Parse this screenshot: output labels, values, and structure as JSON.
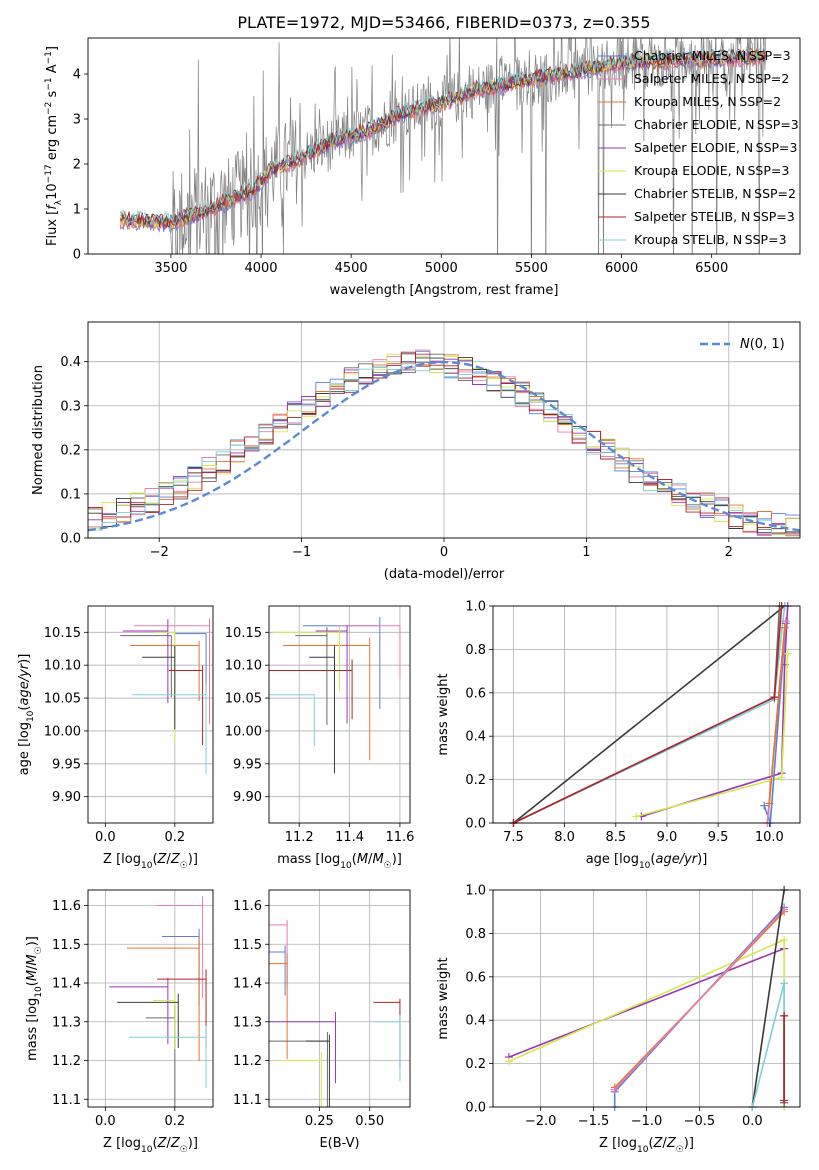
{
  "title": "PLATE=1972, MJD=53466, FIBERID=0373, z=0.355",
  "colors": {
    "chabrier_miles": "#5b7fd6",
    "salpeter_miles": "#e87db0",
    "kroupa_miles": "#e8742a",
    "chabrier_elodie": "#6b6b6b",
    "salpeter_elodie": "#9a36b5",
    "kroupa_elodie": "#d6e84a",
    "chabrier_stelib": "#3a3a3a",
    "salpeter_stelib": "#b0242a",
    "kroupa_stelib": "#7ecfd8",
    "data_gray": "#808080",
    "normal_curve": "#5b8ad6",
    "grid": "#b0b0b0"
  },
  "chart_data": [
    {
      "id": "spectrum",
      "type": "line",
      "xlabel": "wavelength [Angstrom, rest frame]",
      "ylabel": "Flux [f_λ 10^-17 erg cm^-2 s^-1 A^-1]",
      "xlim": [
        3040,
        6990
      ],
      "ylim": [
        0,
        4.8
      ],
      "xticks": [
        3500,
        4000,
        4500,
        5000,
        5500,
        6000,
        6500
      ],
      "yticks": [
        0,
        1,
        2,
        3,
        4
      ],
      "grid": false,
      "legend_position": "top-right",
      "legend": [
        {
          "label": "Chabrier MILES, N_SSP=3",
          "color_key": "chabrier_miles"
        },
        {
          "label": "Salpeter MILES, N_SSP=2",
          "color_key": "salpeter_miles"
        },
        {
          "label": "Kroupa MILES, N_SSP=2",
          "color_key": "kroupa_miles"
        },
        {
          "label": "Chabrier ELODIE, N_SSP=3",
          "color_key": "chabrier_elodie"
        },
        {
          "label": "Salpeter ELODIE, N_SSP=3",
          "color_key": "salpeter_elodie"
        },
        {
          "label": "Kroupa ELODIE, N_SSP=3",
          "color_key": "kroupa_elodie"
        },
        {
          "label": "Chabrier STELIB, N_SSP=2",
          "color_key": "chabrier_stelib"
        },
        {
          "label": "Salpeter STELIB, N_SSP=3",
          "color_key": "salpeter_stelib"
        },
        {
          "label": "Kroupa STELIB, N_SSP=3",
          "color_key": "kroupa_stelib"
        }
      ],
      "continuum": {
        "x": [
          3220,
          3500,
          3700,
          3800,
          3950,
          4050,
          4200,
          4400,
          4600,
          4800,
          5000,
          5200,
          5400,
          5600,
          5800,
          6000,
          6300,
          6600,
          6800
        ],
        "y": [
          0.75,
          0.7,
          0.95,
          1.15,
          1.4,
          1.85,
          2.1,
          2.5,
          2.75,
          3.15,
          3.35,
          3.65,
          3.8,
          3.95,
          4.1,
          4.25,
          4.3,
          4.35,
          4.4
        ]
      }
    },
    {
      "id": "residuals",
      "type": "bar",
      "xlabel": "(data-model)/error",
      "ylabel": "Normed distribution",
      "xlim": [
        -2.5,
        2.5
      ],
      "ylim": [
        0,
        0.49
      ],
      "xticks": [
        -2,
        -1,
        0,
        1,
        2
      ],
      "yticks": [
        0.0,
        0.1,
        0.2,
        0.3,
        0.4
      ],
      "grid": true,
      "legend_position": "top-right",
      "legend": [
        {
          "label": "N(0, 1)",
          "color_key": "normal_curve"
        }
      ],
      "bin_width": 0.1
    },
    {
      "id": "age_vs_Z",
      "type": "scatter",
      "xlabel": "Z [log10(Z/Z☉)]",
      "ylabel": "age [log10(age/yr)]",
      "xlim": [
        -0.05,
        0.31
      ],
      "ylim": [
        9.86,
        10.19
      ],
      "xticks": [
        0.0,
        0.2
      ],
      "yticks": [
        9.9,
        9.95,
        10.0,
        10.05,
        10.1,
        10.15
      ],
      "grid": true,
      "points": [
        {
          "x": 0.29,
          "y": 10.148,
          "color_key": "chabrier_miles"
        },
        {
          "x": 0.3,
          "y": 10.16,
          "color_key": "salpeter_miles"
        },
        {
          "x": 0.27,
          "y": 10.13,
          "color_key": "kroupa_miles"
        },
        {
          "x": 0.19,
          "y": 10.145,
          "color_key": "chabrier_elodie"
        },
        {
          "x": 0.18,
          "y": 10.152,
          "color_key": "salpeter_elodie"
        },
        {
          "x": 0.2,
          "y": 10.15,
          "color_key": "kroupa_elodie"
        },
        {
          "x": 0.2,
          "y": 10.112,
          "color_key": "chabrier_stelib"
        },
        {
          "x": 0.28,
          "y": 10.092,
          "color_key": "salpeter_stelib"
        },
        {
          "x": 0.29,
          "y": 10.055,
          "color_key": "kroupa_stelib"
        }
      ]
    },
    {
      "id": "age_vs_mass",
      "type": "scatter",
      "xlabel": "mass [log10(M/M☉)]",
      "ylabel": "",
      "xlim": [
        11.08,
        11.64
      ],
      "ylim": [
        9.86,
        10.19
      ],
      "xticks": [
        11.2,
        11.4,
        11.6
      ],
      "yticks": [
        9.9,
        9.95,
        10.0,
        10.05,
        10.1,
        10.15
      ],
      "grid": true,
      "points": [
        {
          "x": 11.52,
          "y": 10.16,
          "color_key": "chabrier_miles"
        },
        {
          "x": 11.6,
          "y": 10.16,
          "color_key": "salpeter_miles"
        },
        {
          "x": 11.48,
          "y": 10.13,
          "color_key": "kroupa_miles"
        },
        {
          "x": 11.31,
          "y": 10.145,
          "color_key": "chabrier_elodie"
        },
        {
          "x": 11.39,
          "y": 10.152,
          "color_key": "salpeter_elodie"
        },
        {
          "x": 11.36,
          "y": 10.15,
          "color_key": "kroupa_elodie"
        },
        {
          "x": 11.34,
          "y": 10.112,
          "color_key": "chabrier_stelib"
        },
        {
          "x": 11.41,
          "y": 10.092,
          "color_key": "salpeter_stelib"
        },
        {
          "x": 11.26,
          "y": 10.055,
          "color_key": "kroupa_stelib"
        }
      ]
    },
    {
      "id": "cum_mass_vs_age",
      "type": "line",
      "xlabel": "age [log10(age/yr)]",
      "ylabel": "mass weight",
      "xlim": [
        7.3,
        10.3
      ],
      "ylim": [
        0,
        1.0
      ],
      "xticks": [
        7.5,
        8.0,
        8.5,
        9.0,
        9.5,
        10.0
      ],
      "yticks": [
        0.0,
        0.2,
        0.4,
        0.6,
        0.8,
        1.0
      ],
      "grid": true,
      "series": [
        {
          "color_key": "chabrier_stelib",
          "x": [
            7.5,
            10.15
          ],
          "y": [
            0.0,
            1.0
          ]
        },
        {
          "color_key": "kroupa_stelib",
          "x": [
            7.5,
            10.05,
            10.15
          ],
          "y": [
            0.0,
            0.57,
            1.0
          ]
        },
        {
          "color_key": "chabrier_elodie",
          "x": [
            7.5,
            10.05,
            10.1
          ],
          "y": [
            0.0,
            0.58,
            1.0
          ]
        },
        {
          "color_key": "salpeter_stelib",
          "x": [
            7.5,
            10.05,
            10.12
          ],
          "y": [
            0.0,
            0.58,
            1.0
          ]
        },
        {
          "color_key": "salpeter_elodie",
          "x": [
            8.75,
            10.12,
            10.15,
            10.18
          ],
          "y": [
            0.03,
            0.23,
            0.73,
            1.0
          ]
        },
        {
          "color_key": "kroupa_elodie",
          "x": [
            8.7,
            10.12,
            10.18
          ],
          "y": [
            0.03,
            0.21,
            0.78
          ]
        },
        {
          "color_key": "chabrier_miles",
          "x": [
            9.95,
            10.01,
            10.16
          ],
          "y": [
            0.08,
            0.0,
            0.92
          ]
        },
        {
          "color_key": "salpeter_miles",
          "x": [
            9.98,
            10.16
          ],
          "y": [
            0.0,
            0.93
          ]
        },
        {
          "color_key": "kroupa_miles",
          "x": [
            10.0,
            10.15
          ],
          "y": [
            0.09,
            0.9
          ]
        }
      ]
    },
    {
      "id": "mass_vs_Z",
      "type": "scatter",
      "xlabel": "Z [log10(Z/Z☉)]",
      "ylabel": "mass [log10(M/M☉)]",
      "xlim": [
        -0.05,
        0.31
      ],
      "ylim": [
        11.08,
        11.64
      ],
      "xticks": [
        0.0,
        0.2
      ],
      "yticks": [
        11.1,
        11.2,
        11.3,
        11.4,
        11.5,
        11.6
      ],
      "grid": true,
      "points": [
        {
          "x": 0.27,
          "y": 11.52,
          "color_key": "chabrier_miles"
        },
        {
          "x": 0.28,
          "y": 11.6,
          "color_key": "salpeter_miles"
        },
        {
          "x": 0.27,
          "y": 11.49,
          "color_key": "kroupa_miles"
        },
        {
          "x": 0.2,
          "y": 11.31,
          "color_key": "chabrier_elodie"
        },
        {
          "x": 0.18,
          "y": 11.39,
          "color_key": "salpeter_elodie"
        },
        {
          "x": 0.2,
          "y": 11.355,
          "color_key": "kroupa_elodie"
        },
        {
          "x": 0.21,
          "y": 11.35,
          "color_key": "chabrier_stelib"
        },
        {
          "x": 0.29,
          "y": 11.41,
          "color_key": "salpeter_stelib"
        },
        {
          "x": 0.29,
          "y": 11.26,
          "color_key": "kroupa_stelib"
        }
      ]
    },
    {
      "id": "mass_vs_ebv",
      "type": "scatter",
      "xlabel": "E(B-V)",
      "ylabel": "",
      "xlim": [
        0.0,
        0.7
      ],
      "ylim": [
        11.08,
        11.64
      ],
      "xticks": [
        0.25,
        0.5
      ],
      "yticks": [
        11.1,
        11.2,
        11.3,
        11.4,
        11.5,
        11.6
      ],
      "grid": true,
      "points": [
        {
          "x": 0.08,
          "y": 11.48,
          "color_key": "chabrier_miles"
        },
        {
          "x": 0.09,
          "y": 11.55,
          "color_key": "salpeter_miles"
        },
        {
          "x": 0.09,
          "y": 11.45,
          "color_key": "kroupa_miles"
        },
        {
          "x": 0.29,
          "y": 11.25,
          "color_key": "chabrier_elodie"
        },
        {
          "x": 0.33,
          "y": 11.3,
          "color_key": "salpeter_elodie"
        },
        {
          "x": 0.26,
          "y": 11.2,
          "color_key": "kroupa_elodie"
        },
        {
          "x": 0.3,
          "y": 11.25,
          "color_key": "chabrier_stelib"
        },
        {
          "x": 0.65,
          "y": 11.35,
          "color_key": "salpeter_stelib"
        },
        {
          "x": 0.65,
          "y": 11.3,
          "color_key": "kroupa_stelib"
        }
      ]
    },
    {
      "id": "cum_mass_vs_Z",
      "type": "line",
      "xlabel": "Z [log10(Z/Z☉)]",
      "ylabel": "mass weight",
      "xlim": [
        -2.45,
        0.45
      ],
      "ylim": [
        0,
        1.0
      ],
      "xticks": [
        -2.0,
        -1.5,
        -1.0,
        -0.5,
        0.0
      ],
      "yticks": [
        0.0,
        0.2,
        0.4,
        0.6,
        0.8,
        1.0
      ],
      "grid": true,
      "series": [
        {
          "color_key": "salpeter_elodie",
          "x": [
            -2.3,
            0.3
          ],
          "y": [
            0.23,
            0.73
          ]
        },
        {
          "color_key": "kroupa_elodie",
          "x": [
            -2.3,
            0.3,
            0.3
          ],
          "y": [
            0.21,
            0.77,
            0.0
          ]
        },
        {
          "color_key": "chabrier_miles",
          "x": [
            -1.3,
            -1.3,
            0.3
          ],
          "y": [
            0.0,
            0.07,
            0.92
          ]
        },
        {
          "color_key": "kroupa_miles",
          "x": [
            -1.3,
            0.3
          ],
          "y": [
            0.09,
            0.9
          ]
        },
        {
          "color_key": "salpeter_miles",
          "x": [
            -1.3,
            0.3
          ],
          "y": [
            0.08,
            0.91
          ]
        },
        {
          "color_key": "chabrier_stelib",
          "x": [
            0.0,
            0.3
          ],
          "y": [
            0.0,
            1.0
          ]
        },
        {
          "color_key": "kroupa_stelib",
          "x": [
            0.0,
            0.3,
            0.3
          ],
          "y": [
            0.0,
            0.57,
            0.02
          ]
        },
        {
          "color_key": "chabrier_elodie",
          "x": [
            0.3,
            0.3
          ],
          "y": [
            0.42,
            0.02
          ]
        },
        {
          "color_key": "salpeter_stelib",
          "x": [
            0.3,
            0.3
          ],
          "y": [
            0.42,
            0.03
          ]
        }
      ]
    }
  ]
}
